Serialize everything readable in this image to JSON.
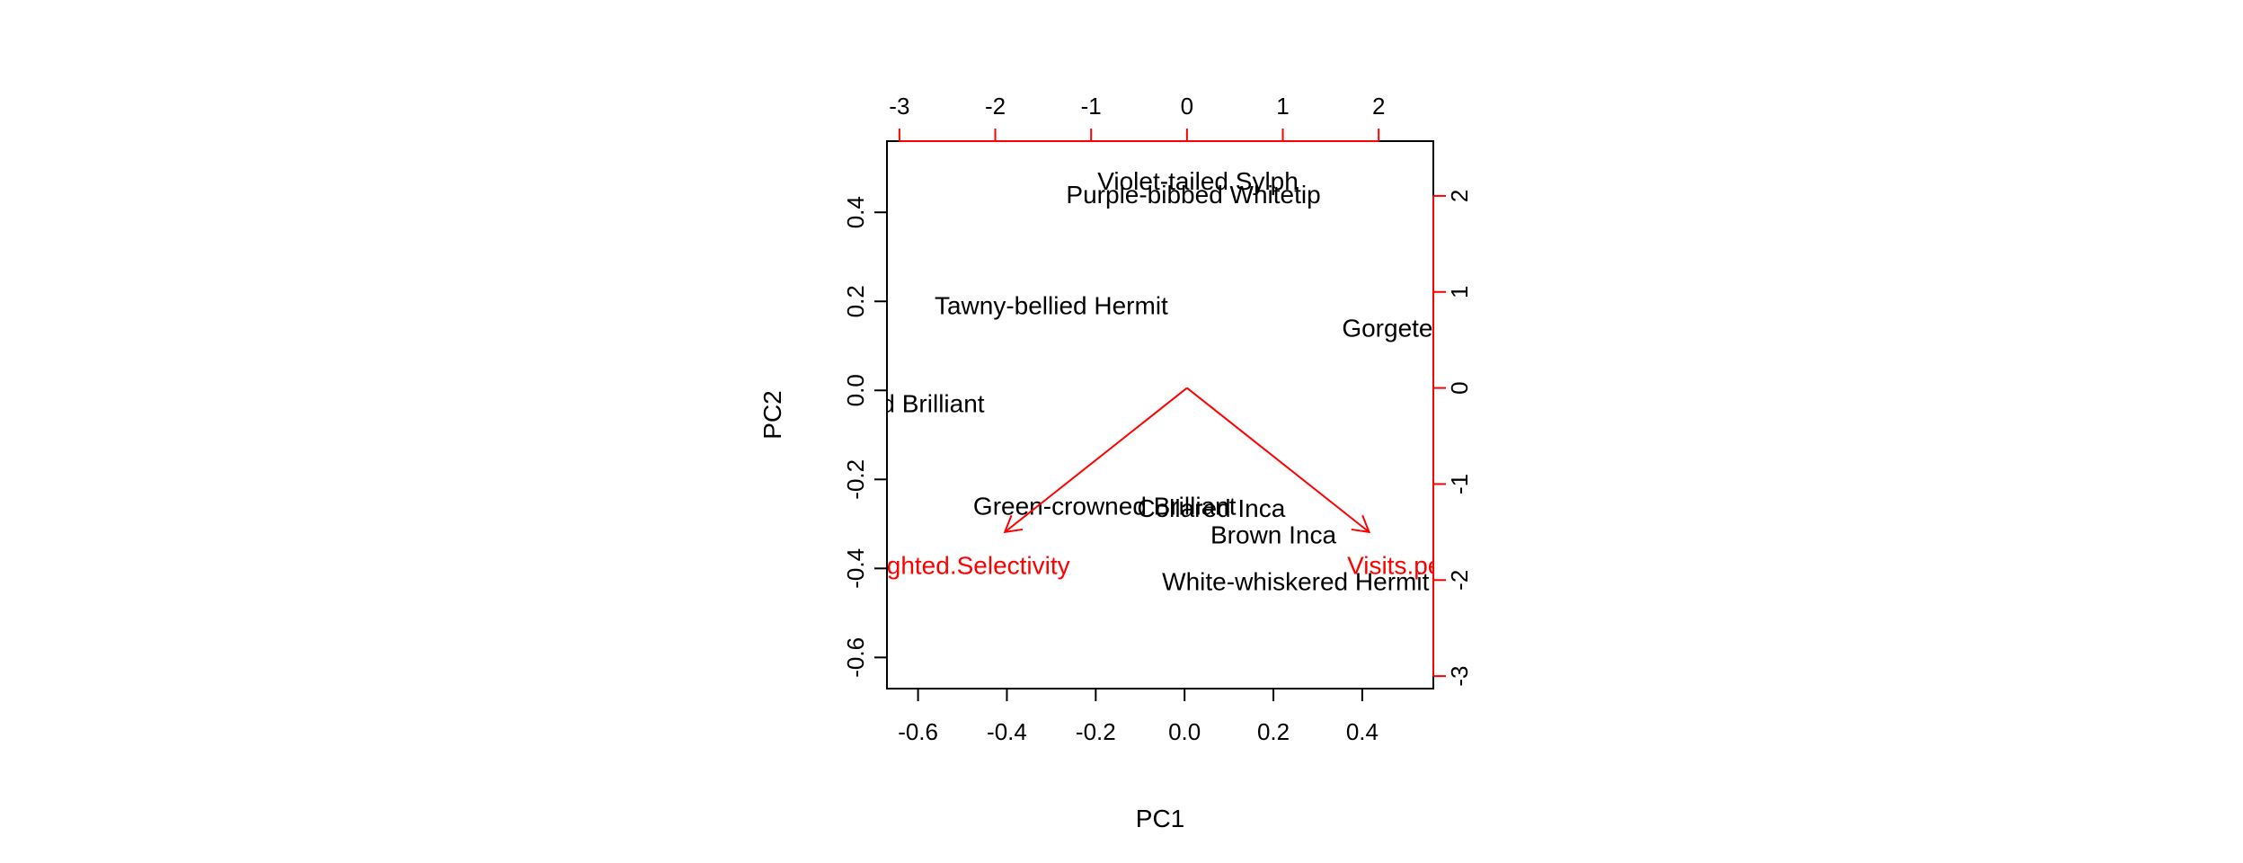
{
  "chart_data": {
    "type": "scatter",
    "subtype": "biplot",
    "xlabel": "PC1",
    "ylabel": "PC2",
    "xlim": [
      -0.67,
      0.56
    ],
    "ylim": [
      -0.67,
      0.56
    ],
    "x_ticks": [
      -0.6,
      -0.4,
      -0.2,
      0.0,
      0.2,
      0.4
    ],
    "x_tick_labels": [
      "-0.6",
      "-0.4",
      "-0.2",
      "0.0",
      "0.2",
      "0.4"
    ],
    "y_ticks": [
      -0.6,
      -0.4,
      -0.2,
      0.0,
      0.2,
      0.4
    ],
    "y_tick_labels": [
      "-0.6",
      "-0.4",
      "-0.2",
      "0.0",
      "0.2",
      "0.4"
    ],
    "secondary_xlim": [
      -3.13,
      2.57
    ],
    "secondary_ylim": [
      -3.13,
      2.57
    ],
    "secondary_x_ticks": [
      -3,
      -2,
      -1,
      0,
      1,
      2
    ],
    "secondary_x_tick_labels": [
      "-3",
      "-2",
      "-1",
      "0",
      "1",
      "2"
    ],
    "secondary_y_ticks": [
      -3,
      -2,
      -1,
      0,
      1,
      2
    ],
    "secondary_y_tick_labels": [
      "-3",
      "-2",
      "-1",
      "0",
      "1",
      "2"
    ],
    "secondary_color": "#ff0000",
    "grid": false,
    "observations": [
      {
        "label": "Violet-tailed Sylph",
        "x": 0.03,
        "y": 0.47
      },
      {
        "label": "Purple-bibbed Whitetip",
        "x": 0.02,
        "y": 0.44
      },
      {
        "label": "Tawny-bellied Hermit",
        "x": -0.3,
        "y": 0.19
      },
      {
        "label": "Gorgeted Sunangel",
        "x": 0.6,
        "y": 0.14
      },
      {
        "label": "Fawn-breasted Brilliant",
        "x": -0.74,
        "y": -0.03
      },
      {
        "label": "Green-crowned Brilliant",
        "x": -0.18,
        "y": -0.26
      },
      {
        "label": "Collared Inca",
        "x": 0.06,
        "y": -0.265
      },
      {
        "label": "Brown Inca",
        "x": 0.2,
        "y": -0.325
      },
      {
        "label": "White-whiskered Hermit",
        "x": 0.25,
        "y": -0.43
      }
    ],
    "loadings": [
      {
        "label": "Weighted.Selectivity",
        "x": -1.9,
        "y": -1.5,
        "label_x": -2.4,
        "label_y": -1.85
      },
      {
        "label": "Visits.per.hour",
        "x": 1.9,
        "y": -1.5,
        "label_x": 2.5,
        "label_y": -1.85
      }
    ]
  }
}
